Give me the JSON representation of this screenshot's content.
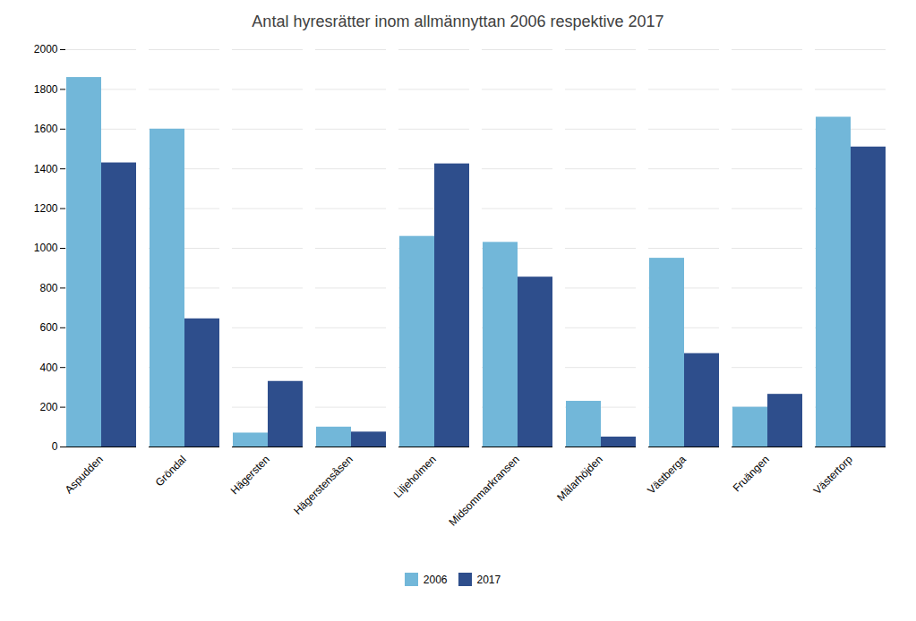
{
  "chart_data": {
    "type": "bar",
    "title": "Antal hyresrätter inom allmännyttan 2006 respektive 2017",
    "categories": [
      "Aspudden",
      "Gröndal",
      "Hägersten",
      "Hägerstensåsen",
      "Liljeholmen",
      "Midsommarkransen",
      "Mälarhöjden",
      "Västberga",
      "Fruängen",
      "Västertorp"
    ],
    "series": [
      {
        "name": "2006",
        "color": "#72b7d9",
        "values": [
          1860,
          1600,
          70,
          100,
          1060,
          1030,
          230,
          950,
          200,
          1660
        ]
      },
      {
        "name": "2017",
        "color": "#2e4e8c",
        "values": [
          1430,
          645,
          330,
          75,
          1425,
          855,
          50,
          470,
          265,
          1510
        ]
      }
    ],
    "ylim": [
      0,
      2000
    ],
    "yticks": [
      0,
      200,
      400,
      600,
      800,
      1000,
      1200,
      1400,
      1600,
      1800,
      2000
    ],
    "grid": true,
    "legend": "bottom"
  }
}
